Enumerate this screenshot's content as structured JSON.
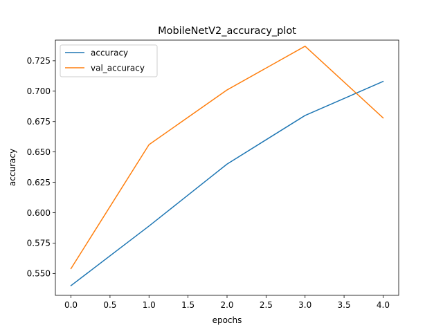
{
  "chart_data": {
    "type": "line",
    "title": "MobileNetV2_accuracy_plot",
    "xlabel": "epochs",
    "ylabel": "accuracy",
    "x": [
      0,
      1,
      2,
      3,
      4
    ],
    "xlim": [
      -0.2,
      4.2
    ],
    "ylim": [
      0.532,
      0.742
    ],
    "xticks": [
      0.0,
      0.5,
      1.0,
      1.5,
      2.0,
      2.5,
      3.0,
      3.5,
      4.0
    ],
    "xtick_labels": [
      "0.0",
      "0.5",
      "1.0",
      "1.5",
      "2.0",
      "2.5",
      "3.0",
      "3.5",
      "4.0"
    ],
    "yticks": [
      0.55,
      0.575,
      0.6,
      0.625,
      0.65,
      0.675,
      0.7,
      0.725
    ],
    "ytick_labels": [
      "0.550",
      "0.575",
      "0.600",
      "0.625",
      "0.650",
      "0.675",
      "0.700",
      "0.725"
    ],
    "grid": false,
    "legend_position": "top-left",
    "series": [
      {
        "name": "accuracy",
        "color": "#1f77b4",
        "values": [
          0.54,
          0.589,
          0.64,
          0.68,
          0.708
        ]
      },
      {
        "name": "val_accuracy",
        "color": "#ff7f0e",
        "values": [
          0.554,
          0.656,
          0.701,
          0.737,
          0.678
        ]
      }
    ]
  }
}
